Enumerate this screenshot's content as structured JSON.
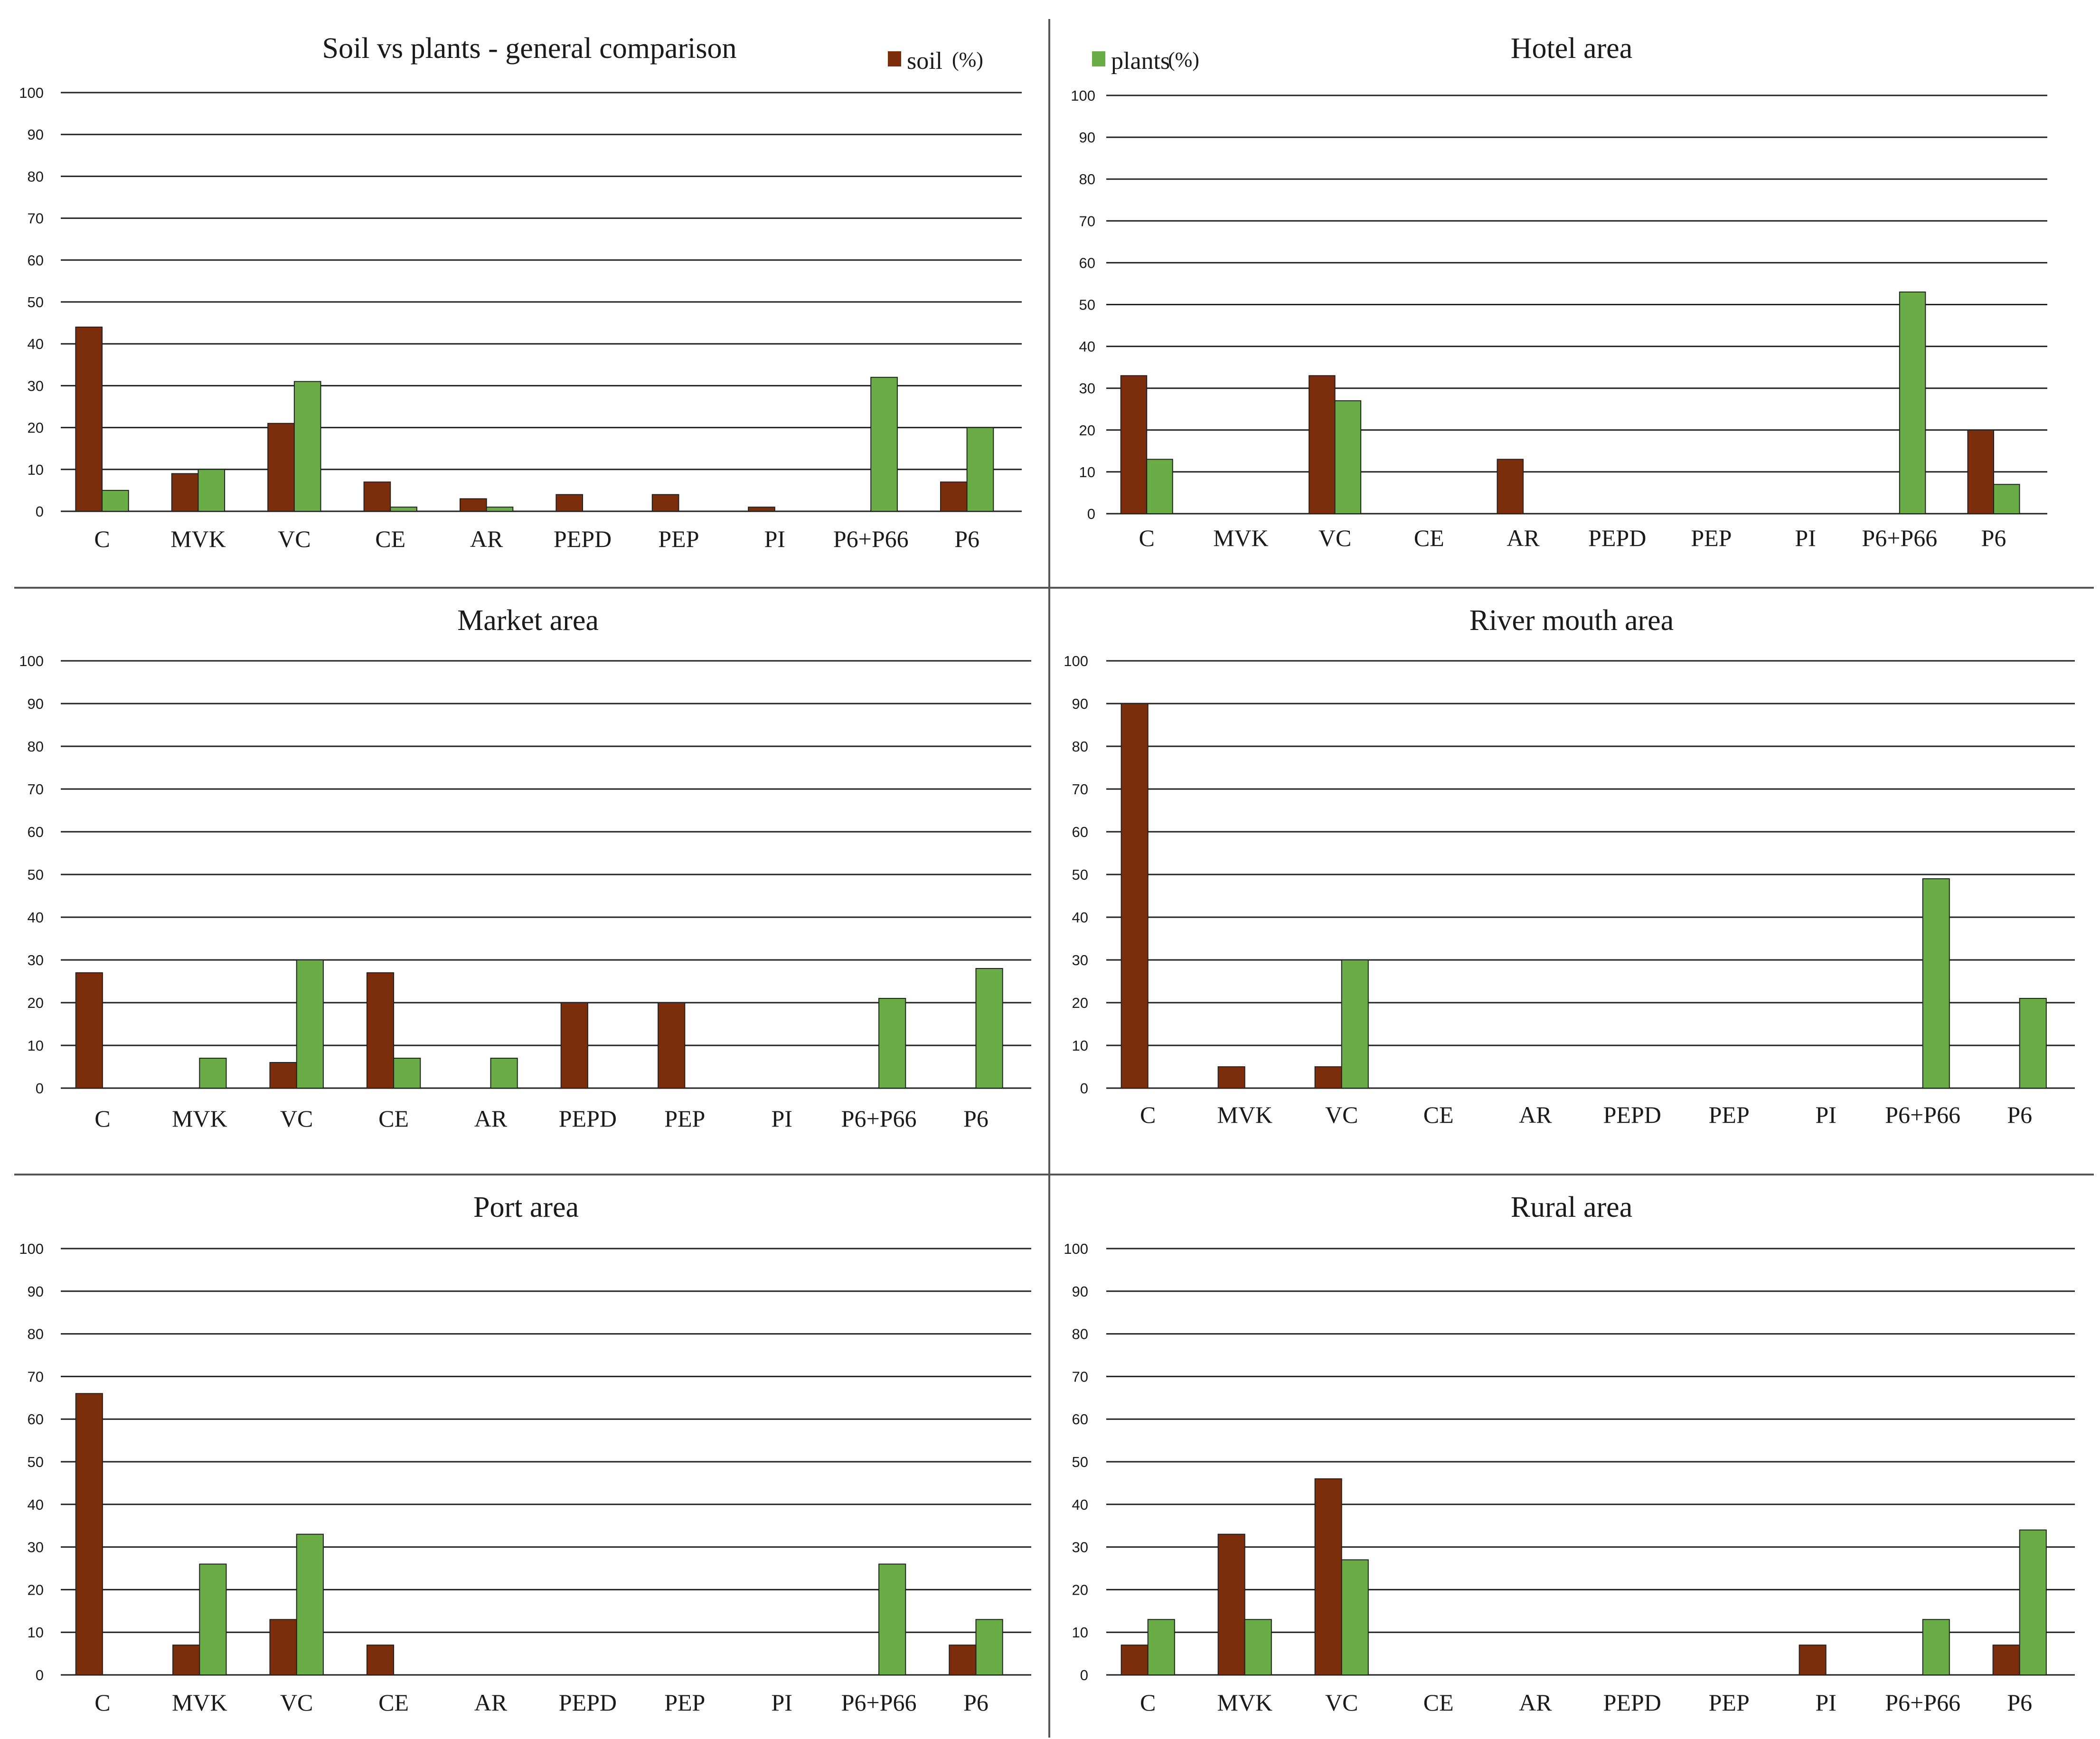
{
  "legend": {
    "soil_label": "soil",
    "soil_unit": "(%)",
    "plants_label": "plants",
    "plants_unit": "(%)"
  },
  "colors": {
    "soil": "#7b2d0c",
    "plants": "#6aad46",
    "grid": "#222222",
    "text": "#1a1a1a"
  },
  "chart_data": [
    {
      "type": "bar",
      "title": "Soil vs plants - general comparison",
      "categories": [
        "C",
        "MVK",
        "VC",
        "CE",
        "AR",
        "PEPD",
        "PEP",
        "PI",
        "P6+P66",
        "P6"
      ],
      "series": [
        {
          "name": "soil",
          "values": [
            44,
            9,
            21,
            7,
            3,
            4,
            4,
            1,
            0,
            7
          ]
        },
        {
          "name": "plants",
          "values": [
            5,
            10,
            31,
            1,
            1,
            0,
            0,
            0,
            32,
            20
          ]
        }
      ],
      "yticks": [
        "0",
        "10",
        "20",
        "30",
        "40",
        "50",
        "60",
        "70",
        "80",
        "90",
        "100"
      ],
      "ylim": [
        0,
        100
      ],
      "xlabel": "",
      "ylabel": ""
    },
    {
      "type": "bar",
      "title": "Hotel area",
      "categories": [
        "C",
        "MVK",
        "VC",
        "CE",
        "AR",
        "PEPD",
        "PEP",
        "PI",
        "P6+P66",
        "P6"
      ],
      "series": [
        {
          "name": "soil",
          "values": [
            33,
            0,
            33,
            0,
            13,
            0,
            0,
            0,
            0,
            20
          ]
        },
        {
          "name": "plants",
          "values": [
            13,
            0,
            27,
            0,
            0,
            0,
            0,
            0,
            53,
            7
          ]
        }
      ],
      "yticks": [
        "0",
        "10",
        "20",
        "30",
        "40",
        "50",
        "60",
        "70",
        "80",
        "90",
        "100"
      ],
      "ylim": [
        0,
        100
      ],
      "xlabel": "",
      "ylabel": ""
    },
    {
      "type": "bar",
      "title": "Market area",
      "categories": [
        "C",
        "MVK",
        "VC",
        "CE",
        "AR",
        "PEPD",
        "PEP",
        "PI",
        "P6+P66",
        "P6"
      ],
      "series": [
        {
          "name": "soil",
          "values": [
            27,
            0,
            6,
            27,
            0,
            20,
            20,
            0,
            0,
            0
          ]
        },
        {
          "name": "plants",
          "values": [
            0,
            7,
            30,
            7,
            7,
            0,
            0,
            0,
            21,
            28
          ]
        }
      ],
      "yticks": [
        "0",
        "10",
        "20",
        "30",
        "40",
        "50",
        "60",
        "70",
        "80",
        "90",
        "100"
      ],
      "ylim": [
        0,
        100
      ],
      "xlabel": "",
      "ylabel": ""
    },
    {
      "type": "bar",
      "title": "River mouth area",
      "categories": [
        "C",
        "MVK",
        "VC",
        "CE",
        "AR",
        "PEPD",
        "PEP",
        "PI",
        "P6+P66",
        "P6"
      ],
      "series": [
        {
          "name": "soil",
          "values": [
            90,
            5,
            5,
            0,
            0,
            0,
            0,
            0,
            0,
            0
          ]
        },
        {
          "name": "plants",
          "values": [
            0,
            0,
            30,
            0,
            0,
            0,
            0,
            0,
            49,
            21
          ]
        }
      ],
      "yticks": [
        "0",
        "10",
        "20",
        "30",
        "40",
        "50",
        "60",
        "70",
        "80",
        "90",
        "100"
      ],
      "ylim": [
        0,
        100
      ],
      "xlabel": "",
      "ylabel": ""
    },
    {
      "type": "bar",
      "title": "Port area",
      "categories": [
        "C",
        "MVK",
        "VC",
        "CE",
        "AR",
        "PEPD",
        "PEP",
        "PI",
        "P6+P66",
        "P6"
      ],
      "series": [
        {
          "name": "soil",
          "values": [
            66,
            7,
            13,
            7,
            0,
            0,
            0,
            0,
            0,
            7
          ]
        },
        {
          "name": "plants",
          "values": [
            0,
            26,
            33,
            0,
            0,
            0,
            0,
            0,
            26,
            13
          ]
        }
      ],
      "yticks": [
        "0",
        "10",
        "20",
        "30",
        "40",
        "50",
        "60",
        "70",
        "80",
        "90",
        "100"
      ],
      "ylim": [
        0,
        100
      ],
      "xlabel": "",
      "ylabel": ""
    },
    {
      "type": "bar",
      "title": "Rural area",
      "categories": [
        "C",
        "MVK",
        "VC",
        "CE",
        "AR",
        "PEPD",
        "PEP",
        "PI",
        "P6+P66",
        "P6"
      ],
      "series": [
        {
          "name": "soil",
          "values": [
            7,
            33,
            46,
            0,
            0,
            0,
            0,
            7,
            0,
            7
          ]
        },
        {
          "name": "plants",
          "values": [
            13,
            13,
            27,
            0,
            0,
            0,
            0,
            0,
            13,
            34
          ]
        }
      ],
      "yticks": [
        "0",
        "10",
        "20",
        "30",
        "40",
        "50",
        "60",
        "70",
        "80",
        "90",
        "100"
      ],
      "ylim": [
        0,
        100
      ],
      "xlabel": "",
      "ylabel": ""
    }
  ]
}
